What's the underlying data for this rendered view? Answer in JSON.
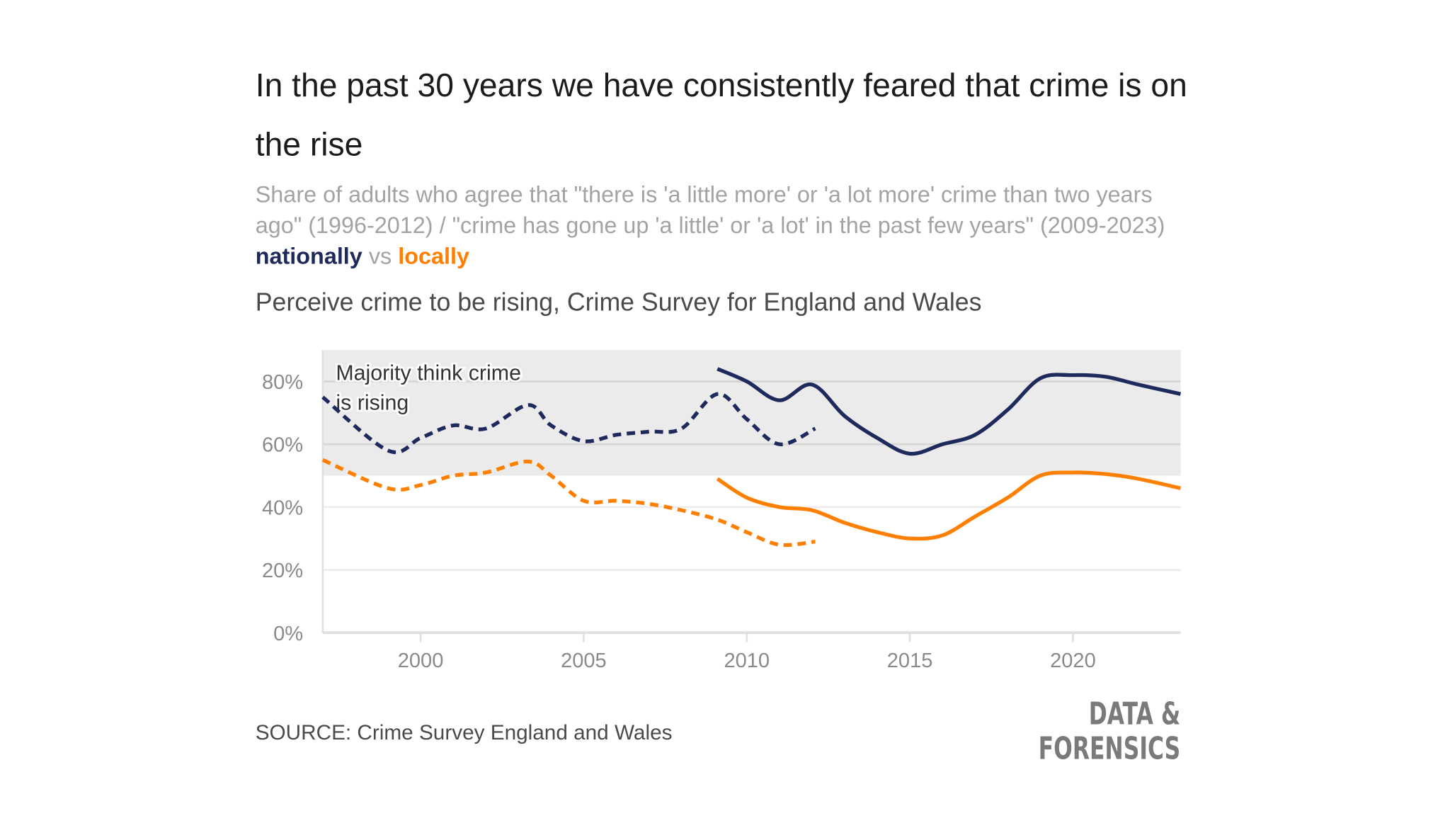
{
  "title": "In the past 30 years we have consistently feared that crime is on the rise",
  "subtitle": {
    "text": "Share of adults who agree that \"there is 'a little more' or 'a lot more' crime than two years ago\" (1996-2012) / \"crime has gone up 'a little' or 'a lot' in the past few years\" (2009-2023)",
    "nationally": "nationally",
    "vs": "vs",
    "locally": "locally"
  },
  "source": "SOURCE: Crime Survey England and Wales",
  "logo": {
    "line1": "DATA &",
    "line2": "FORENSICS"
  },
  "colors": {
    "national": "#1f2a5c",
    "local": "#ff7f00",
    "band": "#ebebeb"
  },
  "chart_data": {
    "type": "line",
    "title": "Perceive crime to be rising, Crime Survey for England and Wales",
    "xlim": [
      1997,
      2023.3
    ],
    "ylim": [
      0,
      90
    ],
    "x_ticks": [
      2000,
      2005,
      2010,
      2015,
      2020
    ],
    "y_ticks": [
      0,
      20,
      40,
      60,
      80
    ],
    "y_tick_labels": [
      "0%",
      "20%",
      "40%",
      "60%",
      "80%"
    ],
    "grid": true,
    "shaded_band": {
      "from": 50,
      "to": 90,
      "label": "Majority think crime is rising"
    },
    "series": [
      {
        "key": "national_old",
        "color": "#1f2a5c",
        "dashed": true,
        "x": [
          1997,
          1999,
          2000,
          2001,
          2002,
          2003.3,
          2004,
          2005,
          2006,
          2007,
          2008,
          2009.1,
          2010,
          2011,
          2012.1
        ],
        "y": [
          75,
          58,
          62,
          66,
          65,
          72.5,
          66,
          61,
          63,
          64,
          65,
          76,
          68,
          60,
          65
        ]
      },
      {
        "key": "national_new",
        "color": "#1f2a5c",
        "dashed": false,
        "x": [
          2009.1,
          2010,
          2011,
          2012,
          2013,
          2014,
          2015,
          2016,
          2017,
          2018,
          2019,
          2020,
          2021,
          2022,
          2023.3
        ],
        "y": [
          84,
          80,
          74,
          79,
          69,
          62,
          57,
          60,
          63,
          71,
          81,
          82,
          81.5,
          79,
          76
        ]
      },
      {
        "key": "local_old",
        "color": "#ff7f00",
        "dashed": true,
        "x": [
          1997,
          1999,
          2000,
          2001,
          2002,
          2003.3,
          2004,
          2005,
          2006,
          2007,
          2008,
          2009.1,
          2010,
          2011,
          2012.1
        ],
        "y": [
          55,
          46,
          47,
          50,
          51,
          54.5,
          50,
          42,
          42,
          41,
          39,
          36,
          32,
          28,
          29
        ]
      },
      {
        "key": "local_new",
        "color": "#ff7f00",
        "dashed": false,
        "x": [
          2009.1,
          2010,
          2011,
          2012,
          2013,
          2014,
          2015,
          2016,
          2017,
          2018,
          2019,
          2020,
          2021,
          2022,
          2023.3
        ],
        "y": [
          49,
          43,
          40,
          39,
          35,
          32,
          30,
          31,
          37,
          43,
          50,
          51,
          50.5,
          49,
          46
        ]
      }
    ]
  }
}
